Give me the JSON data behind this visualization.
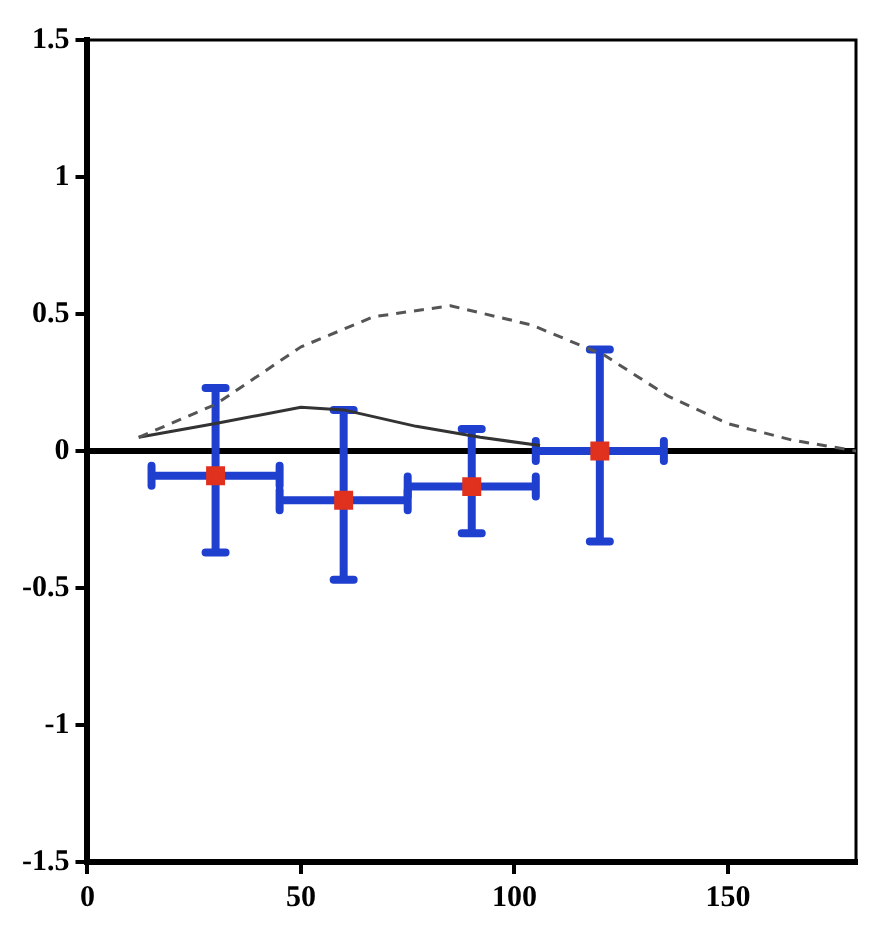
{
  "chart_data": {
    "type": "scatter",
    "xlim": [
      0,
      180
    ],
    "xticks": [
      0,
      50,
      100,
      150
    ],
    "ylim": [
      -1.5,
      1.5
    ],
    "yticks": [
      -1.5,
      -1,
      -0.5,
      0,
      0.5,
      1,
      1.5
    ],
    "grid": false,
    "legend": false,
    "ref_lines": [
      {
        "axis": "y",
        "value": 0,
        "color": "#000000"
      }
    ],
    "series": [
      {
        "type": "line",
        "color": "#555555",
        "line_style": "dashed",
        "marker": "none",
        "x": [
          12,
          30,
          50,
          67,
          85,
          104,
          121,
          136,
          150,
          165,
          180
        ],
        "values": [
          0.05,
          0.17,
          0.38,
          0.49,
          0.53,
          0.46,
          0.35,
          0.2,
          0.1,
          0.04,
          0
        ]
      },
      {
        "type": "line",
        "color": "#333333",
        "line_style": "solid",
        "marker": "none",
        "x": [
          12,
          30,
          50,
          60,
          77,
          92,
          106
        ],
        "values": [
          0.05,
          0.1,
          0.16,
          0.15,
          0.09,
          0.05,
          0.02
        ]
      },
      {
        "type": "scatter",
        "color": "#e0301e",
        "marker": "square",
        "x": [
          30,
          60,
          90,
          120
        ],
        "values": [
          -0.09,
          -0.18,
          -0.13,
          0
        ],
        "errors": [
          [
            -0.37,
            0.23
          ],
          [
            -0.47,
            0.15
          ],
          [
            -0.3,
            0.08
          ],
          [
            -0.33,
            0.37
          ]
        ],
        "xerrors": [
          15,
          15,
          15,
          15
        ]
      }
    ]
  }
}
